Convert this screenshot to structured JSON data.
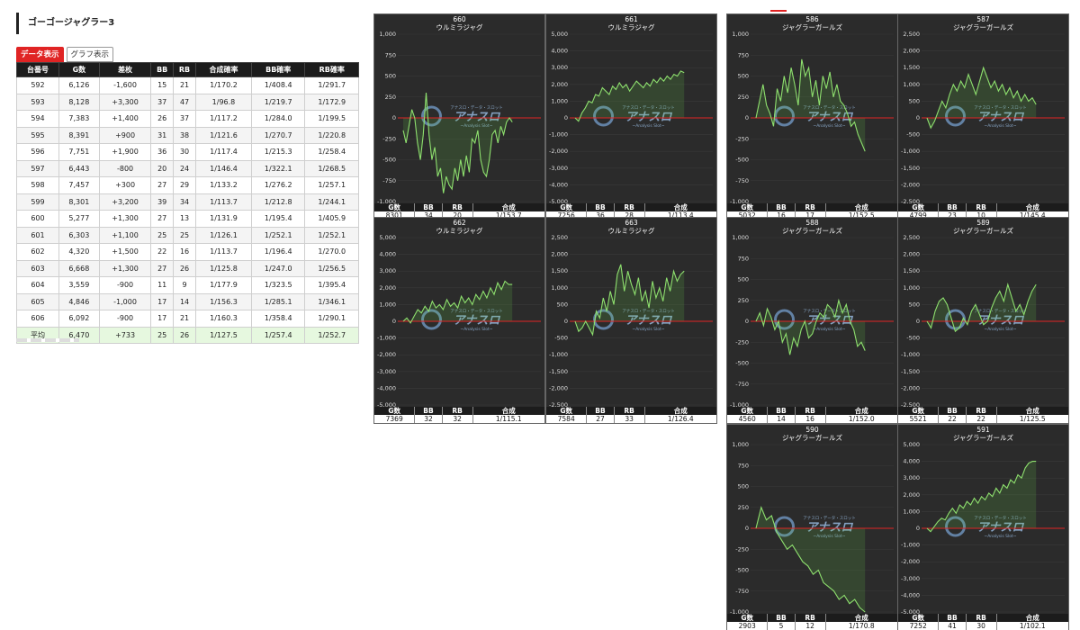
{
  "page_title": "ゴーゴージャグラー3",
  "tabs": [
    {
      "label": "データ表示",
      "active": true
    },
    {
      "label": "グラフ表示",
      "active": false
    }
  ],
  "table": {
    "headers": [
      "台番号",
      "G数",
      "差枚",
      "BB",
      "RB",
      "合成確率",
      "BB確率",
      "RB確率"
    ],
    "rows": [
      [
        "592",
        "6,126",
        "-1,600",
        "15",
        "21",
        "1/170.2",
        "1/408.4",
        "1/291.7"
      ],
      [
        "593",
        "8,128",
        "+3,300",
        "37",
        "47",
        "1/96.8",
        "1/219.7",
        "1/172.9"
      ],
      [
        "594",
        "7,383",
        "+1,400",
        "26",
        "37",
        "1/117.2",
        "1/284.0",
        "1/199.5"
      ],
      [
        "595",
        "8,391",
        "+900",
        "31",
        "38",
        "1/121.6",
        "1/270.7",
        "1/220.8"
      ],
      [
        "596",
        "7,751",
        "+1,900",
        "36",
        "30",
        "1/117.4",
        "1/215.3",
        "1/258.4"
      ],
      [
        "597",
        "6,443",
        "-800",
        "20",
        "24",
        "1/146.4",
        "1/322.1",
        "1/268.5"
      ],
      [
        "598",
        "7,457",
        "+300",
        "27",
        "29",
        "1/133.2",
        "1/276.2",
        "1/257.1"
      ],
      [
        "599",
        "8,301",
        "+3,200",
        "39",
        "34",
        "1/113.7",
        "1/212.8",
        "1/244.1"
      ],
      [
        "600",
        "5,277",
        "+1,300",
        "27",
        "13",
        "1/131.9",
        "1/195.4",
        "1/405.9"
      ],
      [
        "601",
        "6,303",
        "+1,100",
        "25",
        "25",
        "1/126.1",
        "1/252.1",
        "1/252.1"
      ],
      [
        "602",
        "4,320",
        "+1,500",
        "22",
        "16",
        "1/113.7",
        "1/196.4",
        "1/270.0"
      ],
      [
        "603",
        "6,668",
        "+1,300",
        "27",
        "26",
        "1/125.8",
        "1/247.0",
        "1/256.5"
      ],
      [
        "604",
        "3,559",
        "-900",
        "11",
        "9",
        "1/177.9",
        "1/323.5",
        "1/395.4"
      ],
      [
        "605",
        "4,846",
        "-1,000",
        "17",
        "14",
        "1/156.3",
        "1/285.1",
        "1/346.1"
      ],
      [
        "606",
        "6,092",
        "-900",
        "17",
        "21",
        "1/160.3",
        "1/358.4",
        "1/290.1"
      ]
    ],
    "average": [
      "平均",
      "6,470",
      "+733",
      "25",
      "26",
      "1/127.5",
      "1/257.4",
      "1/252.7"
    ]
  },
  "watermark": {
    "text": "アナスロ",
    "sub": "~Analysis Slot~",
    "small": "アナスロ・データ・スロット"
  },
  "colors": {
    "panel_bg": "#2b2b2b",
    "line": "#8ee06e",
    "zero": "#e02424"
  },
  "footer_headers": [
    "G数",
    "BB",
    "RB",
    "合成"
  ],
  "chart_data": [
    {
      "type": "area",
      "number": "660",
      "name": "ウルミラジャグ",
      "ylim": [
        -1000,
        1000
      ],
      "ticks": [
        1000,
        750,
        500,
        250,
        0,
        -250,
        -500,
        -750,
        -1000
      ],
      "values": [
        -150,
        -300,
        -100,
        100,
        0,
        -300,
        -500,
        -200,
        300,
        -200,
        -500,
        -350,
        -700,
        -600,
        -900,
        -700,
        -800,
        -850,
        -600,
        -750,
        -500,
        -700,
        -450,
        -650,
        -250,
        -300,
        -150,
        -500,
        -650,
        -700,
        -500,
        -200,
        -150,
        -300,
        -100,
        -200,
        -50,
        0,
        -50
      ],
      "footer": [
        "8301",
        "34",
        "20",
        "1/153.7"
      ]
    },
    {
      "type": "area",
      "number": "661",
      "name": "ウルミラジャグ",
      "ylim": [
        -5000,
        5000
      ],
      "ticks": [
        5000,
        4000,
        3000,
        2000,
        1000,
        0,
        -1000,
        -2000,
        -3000,
        -4000,
        -5000
      ],
      "values": [
        0,
        -200,
        300,
        600,
        1000,
        900,
        1400,
        1300,
        1800,
        1600,
        1400,
        1900,
        1700,
        2100,
        1800,
        2000,
        1600,
        1900,
        2200,
        2000,
        1800,
        2100,
        1900,
        2300,
        2100,
        2400,
        2200,
        2500,
        2300,
        2600,
        2500,
        2800,
        2700
      ],
      "footer": [
        "7256",
        "36",
        "28",
        "1/113.4"
      ]
    },
    {
      "type": "area",
      "number": "662",
      "name": "ウルミラジャグ",
      "ylim": [
        -5000,
        5000
      ],
      "ticks": [
        5000,
        4000,
        3000,
        2000,
        1000,
        0,
        -1000,
        -2000,
        -3000,
        -4000,
        -5000
      ],
      "values": [
        0,
        200,
        -100,
        300,
        700,
        500,
        900,
        600,
        1200,
        800,
        1000,
        700,
        1300,
        900,
        1100,
        800,
        1500,
        1100,
        1400,
        1000,
        1600,
        1300,
        1800,
        1400,
        2000,
        1600,
        2300,
        1900,
        2400,
        2200,
        2200
      ],
      "footer": [
        "7369",
        "32",
        "32",
        "1/115.1"
      ]
    },
    {
      "type": "area",
      "number": "663",
      "name": "ウルミラジャグ",
      "ylim": [
        -2500,
        2500
      ],
      "ticks": [
        2500,
        2000,
        1500,
        1000,
        500,
        0,
        -500,
        -1000,
        -1500,
        -2000,
        -2500
      ],
      "values": [
        0,
        -300,
        -200,
        0,
        -200,
        -400,
        300,
        100,
        700,
        300,
        900,
        500,
        1400,
        1700,
        900,
        1500,
        1100,
        800,
        1300,
        600,
        900,
        400,
        1200,
        700,
        1000,
        600,
        1300,
        900,
        1500,
        1200,
        1400,
        1500
      ],
      "footer": [
        "7584",
        "27",
        "33",
        "1/126.4"
      ]
    },
    {
      "type": "area",
      "number": "586",
      "name": "ジャグラーガールズ",
      "ylim": [
        -1000,
        1000
      ],
      "ticks": [
        1000,
        750,
        500,
        250,
        0,
        -250,
        -500,
        -750,
        -1000
      ],
      "values": [
        0,
        200,
        400,
        150,
        50,
        -100,
        350,
        200,
        500,
        300,
        600,
        400,
        150,
        700,
        500,
        600,
        250,
        450,
        150,
        500,
        350,
        550,
        250,
        400,
        200,
        150,
        50,
        -100,
        -50,
        -200,
        -300,
        -400
      ],
      "footer": [
        "5032",
        "16",
        "17",
        "1/152.5"
      ]
    },
    {
      "type": "area",
      "number": "587",
      "name": "ジャグラーガールズ",
      "ylim": [
        -2500,
        2500
      ],
      "ticks": [
        2500,
        2000,
        1500,
        1000,
        500,
        0,
        -500,
        -1000,
        -1500,
        -2000,
        -2500
      ],
      "values": [
        0,
        -300,
        -100,
        200,
        500,
        300,
        700,
        1000,
        800,
        1100,
        900,
        1300,
        1000,
        700,
        1100,
        1500,
        1200,
        900,
        1100,
        800,
        1000,
        700,
        900,
        600,
        800,
        500,
        700,
        500,
        600,
        400
      ],
      "footer": [
        "4799",
        "23",
        "10",
        "1/145.4"
      ]
    },
    {
      "type": "area",
      "number": "588",
      "name": "ジャグラーガールズ",
      "ylim": [
        -1000,
        1000
      ],
      "ticks": [
        1000,
        750,
        500,
        250,
        0,
        -250,
        -500,
        -750,
        -1000
      ],
      "values": [
        0,
        100,
        -50,
        150,
        50,
        -100,
        0,
        -250,
        -150,
        -400,
        -200,
        -300,
        -100,
        0,
        -200,
        -150,
        0,
        100,
        50,
        200,
        150,
        50,
        250,
        100,
        200,
        0,
        -100,
        -300,
        -250,
        -350
      ],
      "footer": [
        "4560",
        "14",
        "16",
        "1/152.0"
      ]
    },
    {
      "type": "area",
      "number": "589",
      "name": "ジャグラーガールズ",
      "ylim": [
        -2500,
        2500
      ],
      "ticks": [
        2500,
        2000,
        1500,
        1000,
        500,
        0,
        -500,
        -1000,
        -1500,
        -2000,
        -2500
      ],
      "values": [
        0,
        -200,
        300,
        600,
        700,
        500,
        100,
        -300,
        -200,
        100,
        -100,
        300,
        500,
        200,
        -100,
        0,
        400,
        700,
        900,
        600,
        1100,
        700,
        300,
        500,
        200,
        600,
        900,
        1100
      ],
      "footer": [
        "5521",
        "22",
        "22",
        "1/125.5"
      ]
    },
    {
      "type": "area",
      "number": "590",
      "name": "ジャグラーガールズ",
      "ylim": [
        -1000,
        1000
      ],
      "ticks": [
        1000,
        750,
        500,
        250,
        0,
        -250,
        -500,
        -750,
        -1000
      ],
      "values": [
        0,
        250,
        100,
        150,
        -50,
        -150,
        -250,
        -200,
        -300,
        -400,
        -450,
        -550,
        -500,
        -650,
        -700,
        -750,
        -850,
        -800,
        -900,
        -850,
        -950,
        -1000
      ],
      "footer": [
        "2903",
        "5",
        "12",
        "1/170.8"
      ]
    },
    {
      "type": "area",
      "number": "591",
      "name": "ジャグラーガールズ",
      "ylim": [
        -5000,
        5000
      ],
      "ticks": [
        5000,
        4000,
        3000,
        2000,
        1000,
        0,
        -1000,
        -2000,
        -3000,
        -4000,
        -5000
      ],
      "values": [
        0,
        -200,
        100,
        400,
        600,
        500,
        900,
        1200,
        900,
        1400,
        1200,
        1600,
        1400,
        1800,
        1500,
        1900,
        1700,
        2100,
        1900,
        2400,
        2100,
        2600,
        2400,
        2900,
        2700,
        3200,
        3000,
        3600,
        3900,
        4000,
        4000
      ],
      "footer": [
        "7252",
        "41",
        "30",
        "1/102.1"
      ]
    }
  ]
}
